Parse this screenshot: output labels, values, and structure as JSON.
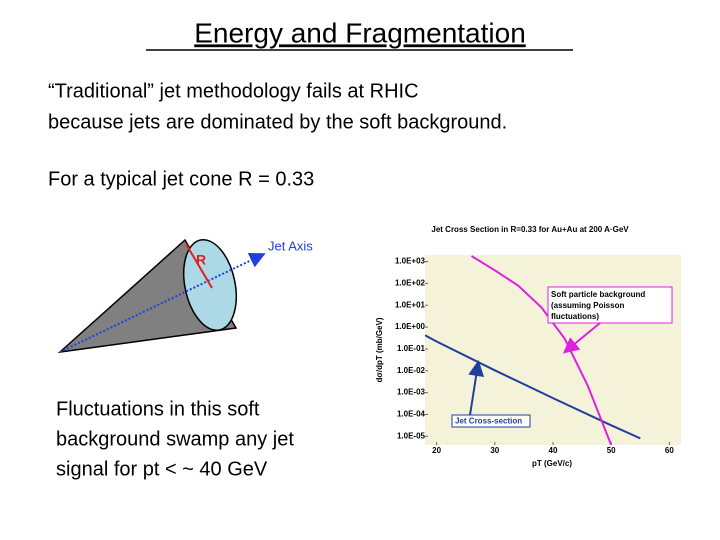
{
  "slide": {
    "title": "Energy and Fragmentation",
    "body": [
      "“Traditional” jet methodology fails at RHIC",
      "because jets are dominated by the soft background."
    ],
    "cone_caption": "For a typical jet cone R = 0.33",
    "diagram": {
      "radius_label": "R",
      "axis_label": "Jet Axis"
    },
    "bottom_text": [
      "Fluctuations in this soft",
      "background swamp any jet",
      "signal for pt < ~ 40 GeV"
    ]
  },
  "chart_data": {
    "type": "line",
    "title": "Jet Cross Section in R=0.33 for Au+Au at 200 A·GeV",
    "x_label": "pT (GeV/c)",
    "y_label": "dσ/dpT (mb/GeV)",
    "log_y": true,
    "xlim": [
      18,
      62
    ],
    "ylim": [
      4e-06,
      2000
    ],
    "xticks": [
      20,
      30,
      40,
      50,
      60
    ],
    "yticks": [
      {
        "value": 1000,
        "label": "1.0E+03"
      },
      {
        "value": 100,
        "label": "1.0E+02"
      },
      {
        "value": 10,
        "label": "1.0E+01"
      },
      {
        "value": 1,
        "label": "1.0E+00"
      },
      {
        "value": 0.1,
        "label": "1.0E-01"
      },
      {
        "value": 0.01,
        "label": "1.0E-02"
      },
      {
        "value": 0.001,
        "label": "1.0E-03"
      },
      {
        "value": 0.0001,
        "label": "1.0E-04"
      },
      {
        "value": 1e-05,
        "label": "1.0E-05"
      }
    ],
    "series": [
      {
        "name": "Jet Cross-section",
        "color": "#1f3f9f",
        "x": [
          18,
          20,
          30,
          40,
          50,
          55
        ],
        "values": [
          0.42,
          0.22,
          0.0105,
          0.00056,
          3.2e-05,
          8e-06
        ]
      },
      {
        "name": "Soft particle background",
        "note_lines": [
          "(assuming Poisson",
          "fluctuations)"
        ],
        "color": "#e020e0",
        "x": [
          26,
          30,
          34,
          38,
          42,
          46,
          50
        ],
        "values": [
          1800,
          400,
          80,
          8,
          0.3,
          0.002,
          4e-06
        ]
      }
    ]
  }
}
